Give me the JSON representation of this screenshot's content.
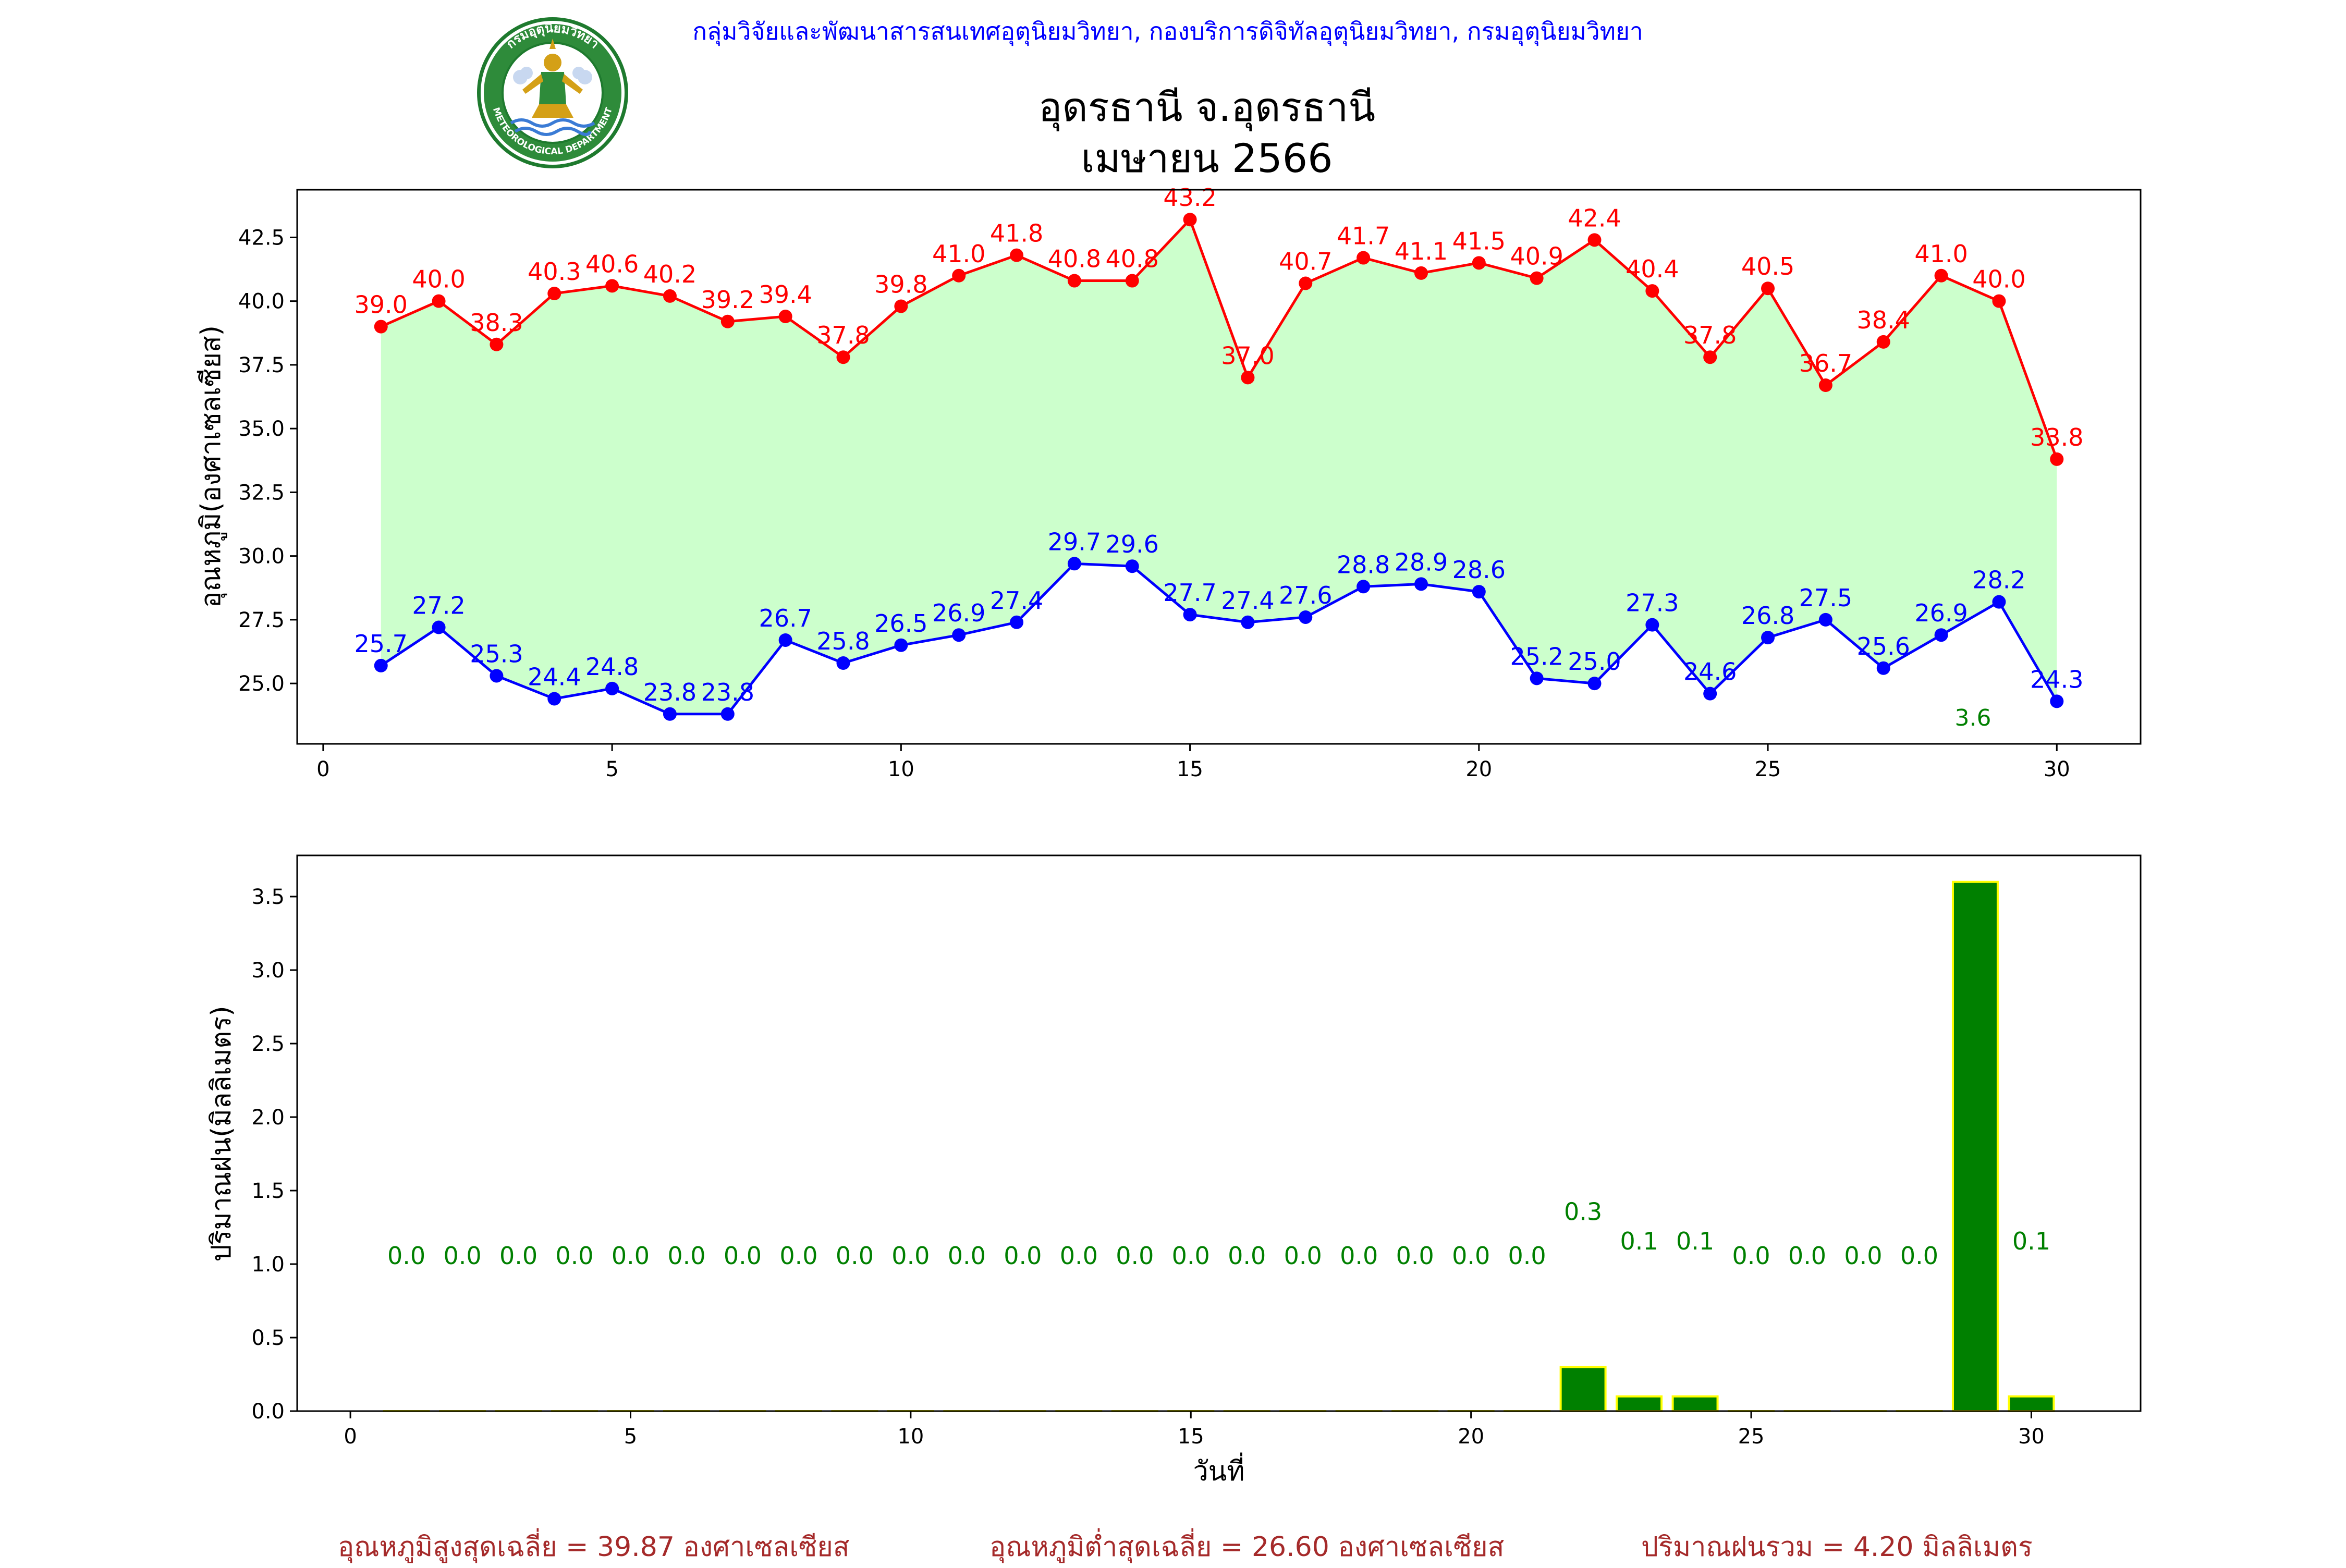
{
  "header": {
    "agency_line": "กลุ่มวิจัยและพัฒนาสารสนเทศอุตุนิยมวิทยา, กองบริการดิจิทัลอุตุนิยมวิทยา, กรมอุตุนิยมวิทยา",
    "title_line1": "อุดรธานี จ.อุดรธานี",
    "title_line2": "เมษายน 2566",
    "logo_text_top": "กรมอุตุนิยมวิทยา",
    "logo_text_bottom": "METEOROLOGICAL DEPARTMENT"
  },
  "footer": {
    "avg_max": "อุณหภูมิสูงสุดเฉลี่ย = 39.87 องศาเซลเซียส",
    "avg_min": "อุณหภูมิต่ำสุดเฉลี่ย = 26.60 องศาเซลเซียส",
    "total_rain": "ปริมาณฝนรวม = 4.20 มิลลิเมตร"
  },
  "colors": {
    "max_line": "#ff0000",
    "min_line": "#0000ff",
    "fill": "#ccffcc",
    "bar": "#008000",
    "bar_edge": "#ffff00",
    "header_text": "#0000ff",
    "footer_text": "#a52a2a"
  },
  "chart_data": [
    {
      "type": "line",
      "ylabel": "อุณหภูมิ(องศาเซลเซียส)",
      "xlabel": "",
      "x": [
        1,
        2,
        3,
        4,
        5,
        6,
        7,
        8,
        9,
        10,
        11,
        12,
        13,
        14,
        15,
        16,
        17,
        18,
        19,
        20,
        21,
        22,
        23,
        24,
        25,
        26,
        27,
        28,
        29,
        30
      ],
      "series": [
        {
          "name": "",
          "color": "#ff0000",
          "values": [
            39.0,
            40.0,
            38.3,
            40.3,
            40.6,
            40.2,
            39.2,
            39.4,
            37.8,
            39.8,
            41.0,
            41.8,
            40.8,
            40.8,
            43.2,
            37.0,
            40.7,
            41.7,
            41.1,
            41.5,
            40.9,
            42.4,
            40.4,
            37.8,
            40.5,
            36.7,
            38.4,
            41.0,
            40.0,
            33.8
          ]
        },
        {
          "name": "",
          "color": "#0000ff",
          "values": [
            25.7,
            27.2,
            25.3,
            24.4,
            24.8,
            23.8,
            23.8,
            26.7,
            25.8,
            26.5,
            26.9,
            27.4,
            29.7,
            29.6,
            27.7,
            27.4,
            27.6,
            28.8,
            28.9,
            28.6,
            25.2,
            25.0,
            27.3,
            24.6,
            26.8,
            27.5,
            25.6,
            26.9,
            28.2,
            24.3
          ]
        }
      ],
      "extra_label": {
        "x": 28.55,
        "y": 23.35,
        "text": "3.6"
      },
      "xlim": [
        -0.45,
        31.45
      ],
      "ylim": [
        22.63,
        44.37
      ],
      "xticks": [
        0,
        5,
        10,
        15,
        20,
        25,
        30
      ],
      "yticks": [
        25.0,
        27.5,
        30.0,
        32.5,
        35.0,
        37.5,
        40.0,
        42.5
      ],
      "ytick_labels": [
        "25.0",
        "27.5",
        "30.0",
        "32.5",
        "35.0",
        "37.5",
        "40.0",
        "42.5"
      ],
      "grid": false,
      "legend": "none"
    },
    {
      "type": "bar",
      "ylabel": "ปริมาณฝน(มิลลิเมตร)",
      "xlabel": "วันที่",
      "x": [
        1,
        2,
        3,
        4,
        5,
        6,
        7,
        8,
        9,
        10,
        11,
        12,
        13,
        14,
        15,
        16,
        17,
        18,
        19,
        20,
        21,
        22,
        23,
        24,
        25,
        26,
        27,
        28,
        29,
        30
      ],
      "values": [
        0,
        0,
        0,
        0,
        0,
        0,
        0,
        0,
        0,
        0,
        0,
        0,
        0,
        0,
        0,
        0,
        0,
        0,
        0,
        0,
        0,
        0.3,
        0.1,
        0.1,
        0,
        0,
        0,
        0,
        3.6,
        0.1
      ],
      "labels": [
        "0.0",
        "0.0",
        "0.0",
        "0.0",
        "0.0",
        "0.0",
        "0.0",
        "0.0",
        "0.0",
        "0.0",
        "0.0",
        "0.0",
        "0.0",
        "0.0",
        "0.0",
        "0.0",
        "0.0",
        "0.0",
        "0.0",
        "0.0",
        "0.0",
        "0.3",
        "0.1",
        "0.1",
        "0.0",
        "0.0",
        "0.0",
        "0.0",
        "",
        "0.1"
      ],
      "xlim": [
        -0.95,
        31.95
      ],
      "ylim": [
        0,
        3.78
      ],
      "xticks": [
        0,
        5,
        10,
        15,
        20,
        25,
        30
      ],
      "yticks": [
        0.0,
        0.5,
        1.0,
        1.5,
        2.0,
        2.5,
        3.0,
        3.5
      ],
      "ytick_labels": [
        "0.0",
        "0.5",
        "1.0",
        "1.5",
        "2.0",
        "2.5",
        "3.0",
        "3.5"
      ],
      "grid": false,
      "legend": "none"
    }
  ]
}
